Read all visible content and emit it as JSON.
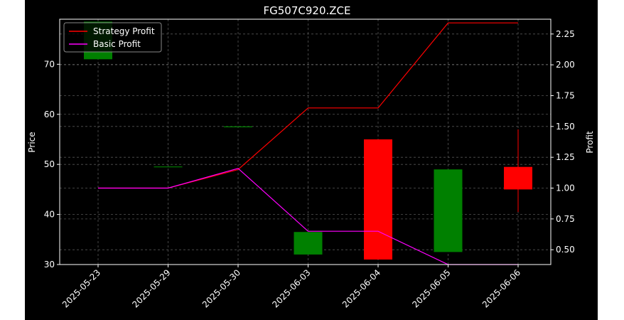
{
  "chart_data": {
    "type": "candlestick",
    "title": "FG507C920.ZCE",
    "categories": [
      "2025-05-23",
      "2025-05-29",
      "2025-05-30",
      "2025-06-03",
      "2025-06-04",
      "2025-06-05",
      "2025-06-06"
    ],
    "ylabel_left": "Price",
    "ylabel_right": "Profit",
    "ylim_left": [
      30,
      79
    ],
    "ylim_right": [
      0.38,
      2.37
    ],
    "yticks_left": [
      "30",
      "40",
      "50",
      "60",
      "70"
    ],
    "yticks_right": [
      "0.50",
      "0.75",
      "1.00",
      "1.25",
      "1.50",
      "1.75",
      "2.00",
      "2.25"
    ],
    "grid": true,
    "legend_position": "upper-left",
    "candles": [
      {
        "open": 71.0,
        "close": 78.5,
        "high": 78.5,
        "low": 71.0
      },
      {
        "open": 49.5,
        "close": 49.5,
        "high": 49.5,
        "low": 49.5
      },
      {
        "open": 57.5,
        "close": 57.5,
        "high": 57.5,
        "low": 57.5
      },
      {
        "open": 32.0,
        "close": 36.5,
        "high": 36.5,
        "low": 32.0
      },
      {
        "open": 55.0,
        "close": 31.0,
        "high": 55.0,
        "low": 31.0
      },
      {
        "open": 32.5,
        "close": 49.0,
        "high": 49.0,
        "low": 32.5
      },
      {
        "open": 49.5,
        "close": 45.0,
        "high": 57.0,
        "low": 40.5
      }
    ],
    "series": [
      {
        "name": "Strategy Profit",
        "color": "#ff0000",
        "values": [
          1.0,
          1.0,
          1.15,
          1.65,
          1.65,
          2.34,
          2.34
        ]
      },
      {
        "name": "Basic Profit",
        "color": "#ff00ff",
        "values": [
          1.0,
          1.0,
          1.16,
          0.65,
          0.65,
          0.38,
          0.38
        ]
      }
    ],
    "colors": {
      "up": "#008000",
      "down": "#ff0000",
      "background": "#000000",
      "foreground": "#ffffff",
      "grid": "#555555"
    }
  }
}
